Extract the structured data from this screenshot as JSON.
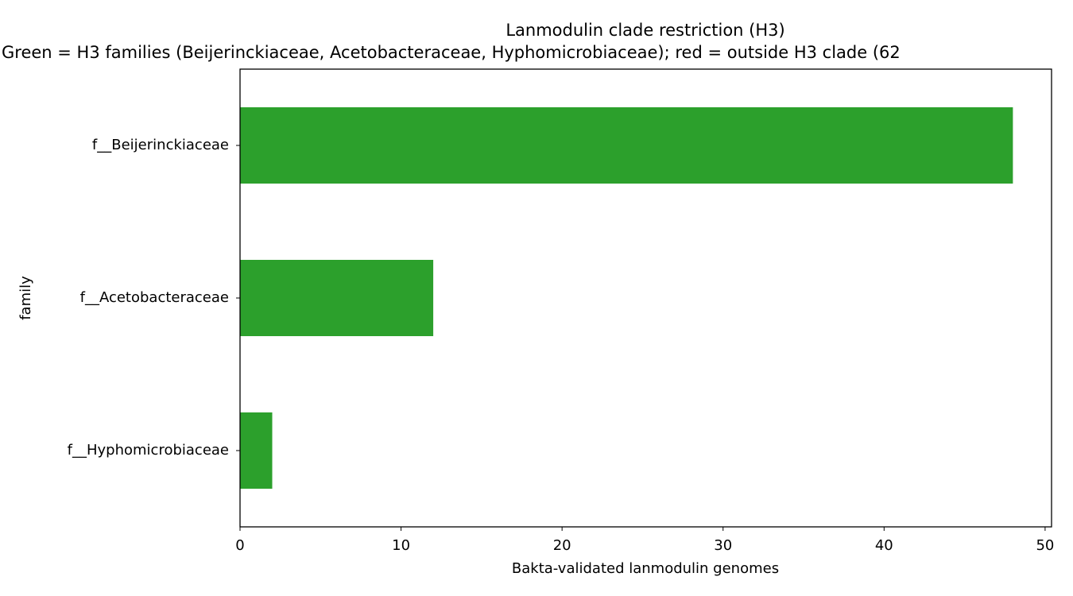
{
  "chart_data": {
    "type": "barh",
    "title": "Lanmodulin clade restriction (H3)",
    "subtitle": "Green = H3 families (Beijerinckiaceae, Acetobacteraceae, Hyphomicrobiaceae); red = outside H3 clade (62",
    "x_label": "Bakta-validated lanmodulin genomes",
    "y_label": "family",
    "categories": [
      "f__Beijerinckiaceae",
      "f__Acetobacteraceae",
      "f__Hyphomicrobiaceae"
    ],
    "values": [
      48,
      12,
      2
    ],
    "color": "#2ca02c",
    "xlim": [
      0,
      50.4
    ],
    "xticks": [
      0,
      10,
      20,
      30,
      40,
      50
    ],
    "grid": false
  }
}
